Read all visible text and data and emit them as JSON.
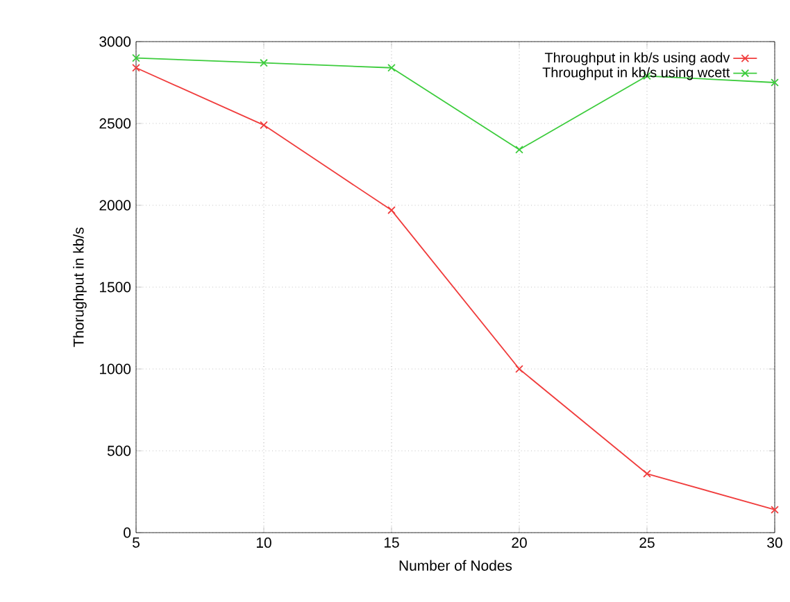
{
  "chart_data": {
    "type": "line",
    "xlabel": "Number of Nodes",
    "ylabel": "Thorughput  in kb/s",
    "x": [
      5,
      10,
      15,
      20,
      25,
      30
    ],
    "series": [
      {
        "name": "Throughput in kb/s using  aodv",
        "color": "#f03c3c",
        "values": [
          2840,
          2490,
          1970,
          1000,
          360,
          140
        ]
      },
      {
        "name": "Throughput in kb/s using   wcett",
        "color": "#3ccc3c",
        "values": [
          2900,
          2870,
          2840,
          2340,
          2790,
          2750
        ]
      }
    ],
    "xlim": [
      5,
      30
    ],
    "ylim": [
      0,
      3000
    ],
    "xticks": [
      5,
      10,
      15,
      20,
      25,
      30
    ],
    "yticks": [
      0,
      500,
      1000,
      1500,
      2000,
      2500,
      3000
    ],
    "grid": true,
    "legend": "top right",
    "marker": "cross",
    "line_style": "solid"
  }
}
